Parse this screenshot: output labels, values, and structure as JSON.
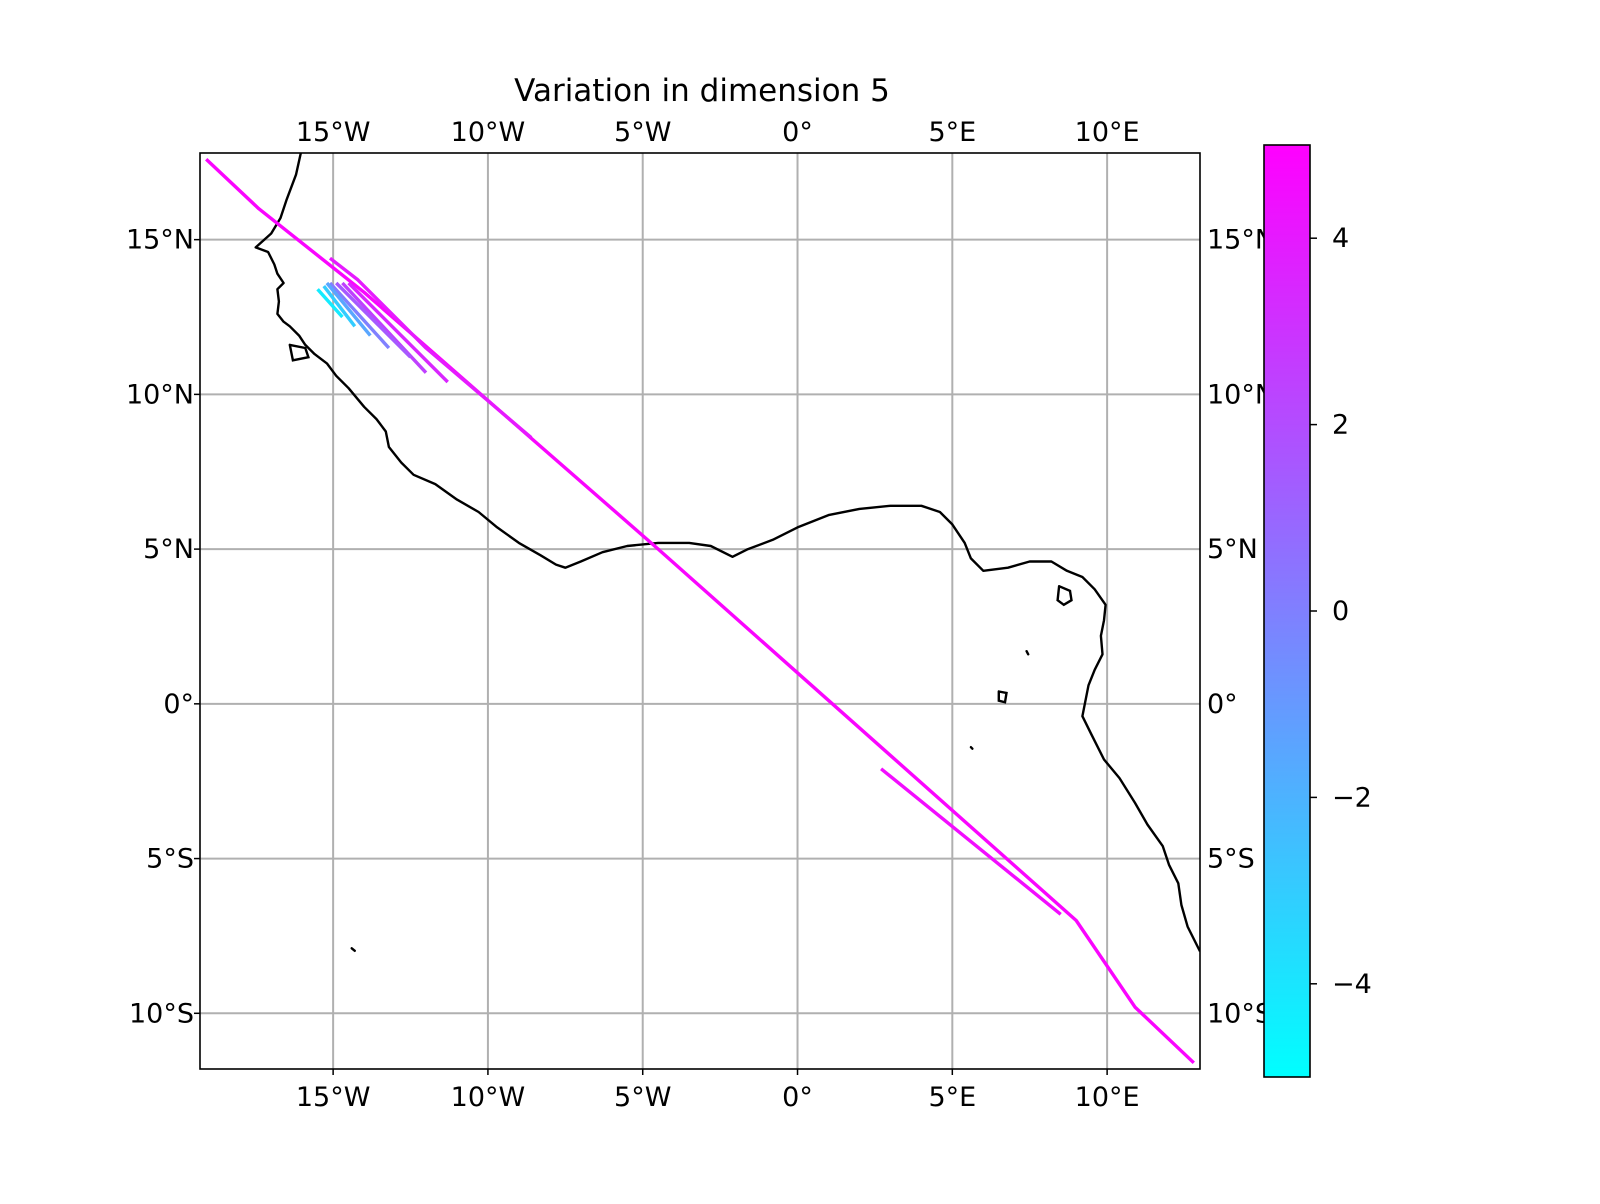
{
  "chart_data": {
    "type": "map",
    "title": "Variation in dimension 5",
    "projection": "PlateCarree",
    "extent": {
      "lon": [
        -19.3,
        13.0
      ],
      "lat": [
        -11.8,
        17.8
      ]
    },
    "grid": true,
    "x_ticks": [
      {
        "value": -15,
        "label": "15°W"
      },
      {
        "value": -10,
        "label": "10°W"
      },
      {
        "value": -5,
        "label": "5°W"
      },
      {
        "value": 0,
        "label": "0°"
      },
      {
        "value": 5,
        "label": "5°E"
      },
      {
        "value": 10,
        "label": "10°E"
      }
    ],
    "y_ticks": [
      {
        "value": 15,
        "label": "15°N"
      },
      {
        "value": 10,
        "label": "10°N"
      },
      {
        "value": 5,
        "label": "5°N"
      },
      {
        "value": 0,
        "label": "0°"
      },
      {
        "value": -5,
        "label": "5°S"
      },
      {
        "value": -10,
        "label": "10°S"
      }
    ],
    "colorbar": {
      "colormap": "cool",
      "range": [
        -5,
        5
      ],
      "colors": [
        "#00ffff",
        "#ff00ff"
      ],
      "ticks": [
        -4,
        -2,
        0,
        2,
        4
      ],
      "tick_labels": [
        "−4",
        "−2",
        "0",
        "2",
        "4"
      ]
    },
    "coastline": [
      [
        -16.0,
        18.0
      ],
      [
        -16.2,
        17.1
      ],
      [
        -16.5,
        16.3
      ],
      [
        -16.7,
        15.7
      ],
      [
        -17.0,
        15.2
      ],
      [
        -17.5,
        14.75
      ],
      [
        -17.1,
        14.6
      ],
      [
        -16.9,
        14.2
      ],
      [
        -16.8,
        13.9
      ],
      [
        -16.6,
        13.6
      ],
      [
        -16.8,
        13.4
      ],
      [
        -16.75,
        13.0
      ],
      [
        -16.8,
        12.6
      ],
      [
        -16.6,
        12.35
      ],
      [
        -16.4,
        12.2
      ],
      [
        -16.1,
        11.9
      ],
      [
        -15.9,
        11.6
      ],
      [
        -15.6,
        11.3
      ],
      [
        -15.2,
        11.0
      ],
      [
        -14.9,
        10.6
      ],
      [
        -14.5,
        10.2
      ],
      [
        -14.0,
        9.6
      ],
      [
        -13.6,
        9.2
      ],
      [
        -13.3,
        8.8
      ],
      [
        -13.2,
        8.3
      ],
      [
        -12.8,
        7.8
      ],
      [
        -12.4,
        7.4
      ],
      [
        -11.7,
        7.1
      ],
      [
        -11.0,
        6.6
      ],
      [
        -10.3,
        6.2
      ],
      [
        -9.7,
        5.7
      ],
      [
        -9.0,
        5.2
      ],
      [
        -8.3,
        4.8
      ],
      [
        -7.8,
        4.5
      ],
      [
        -7.5,
        4.4
      ],
      [
        -7.0,
        4.6
      ],
      [
        -6.3,
        4.9
      ],
      [
        -5.5,
        5.1
      ],
      [
        -4.5,
        5.2
      ],
      [
        -3.5,
        5.2
      ],
      [
        -2.8,
        5.1
      ],
      [
        -2.1,
        4.75
      ],
      [
        -1.6,
        5.0
      ],
      [
        -0.8,
        5.3
      ],
      [
        0.0,
        5.7
      ],
      [
        1.0,
        6.1
      ],
      [
        2.0,
        6.3
      ],
      [
        3.0,
        6.4
      ],
      [
        4.0,
        6.4
      ],
      [
        4.6,
        6.2
      ],
      [
        5.0,
        5.8
      ],
      [
        5.4,
        5.2
      ],
      [
        5.6,
        4.7
      ],
      [
        6.0,
        4.3
      ],
      [
        6.8,
        4.4
      ],
      [
        7.5,
        4.6
      ],
      [
        8.2,
        4.6
      ],
      [
        8.7,
        4.3
      ],
      [
        9.2,
        4.1
      ],
      [
        9.6,
        3.7
      ],
      [
        9.95,
        3.2
      ],
      [
        9.9,
        2.7
      ],
      [
        9.8,
        2.2
      ],
      [
        9.85,
        1.6
      ],
      [
        9.6,
        1.1
      ],
      [
        9.4,
        0.6
      ],
      [
        9.2,
        -0.4
      ],
      [
        9.5,
        -1.0
      ],
      [
        9.9,
        -1.8
      ],
      [
        10.4,
        -2.4
      ],
      [
        10.9,
        -3.2
      ],
      [
        11.3,
        -3.9
      ],
      [
        11.8,
        -4.6
      ],
      [
        12.0,
        -5.2
      ],
      [
        12.3,
        -5.8
      ],
      [
        12.4,
        -6.5
      ],
      [
        12.6,
        -7.2
      ],
      [
        13.0,
        -8.0
      ]
    ],
    "islands": [
      [
        [
          8.45,
          3.8
        ],
        [
          8.8,
          3.65
        ],
        [
          8.85,
          3.35
        ],
        [
          8.6,
          3.2
        ],
        [
          8.4,
          3.35
        ],
        [
          8.45,
          3.8
        ]
      ],
      [
        [
          6.5,
          0.4
        ],
        [
          6.75,
          0.35
        ],
        [
          6.7,
          0.05
        ],
        [
          6.5,
          0.1
        ],
        [
          6.5,
          0.4
        ]
      ],
      [
        [
          7.4,
          1.7
        ],
        [
          7.45,
          1.6
        ]
      ],
      [
        [
          5.6,
          -1.4
        ],
        [
          5.65,
          -1.45
        ]
      ],
      [
        [
          -14.4,
          -7.9
        ],
        [
          -14.3,
          -7.98
        ]
      ],
      [
        [
          -16.4,
          11.6
        ],
        [
          -15.9,
          11.5
        ],
        [
          -15.8,
          11.2
        ],
        [
          -16.3,
          11.1
        ],
        [
          -16.4,
          11.6
        ]
      ]
    ],
    "series": [
      {
        "value": 4.8,
        "points": [
          [
            -19.1,
            17.6
          ],
          [
            -17.4,
            16.0
          ],
          [
            -14.0,
            13.3
          ],
          [
            -4.5,
            5.0
          ],
          [
            9.0,
            -7.0
          ],
          [
            10.9,
            -9.8
          ],
          [
            12.8,
            -11.6
          ]
        ]
      },
      {
        "value": 4.5,
        "points": [
          [
            2.7,
            -2.1
          ],
          [
            8.5,
            -6.8
          ]
        ]
      },
      {
        "value": 4.0,
        "points": [
          [
            -15.1,
            14.4
          ],
          [
            -14.2,
            13.7
          ],
          [
            -12.0,
            11.5
          ],
          [
            -8.6,
            8.6
          ]
        ]
      },
      {
        "value": 3.5,
        "points": [
          [
            -14.5,
            13.6
          ],
          [
            -11.3,
            10.4
          ]
        ]
      },
      {
        "value": 2.5,
        "points": [
          [
            -14.7,
            13.6
          ],
          [
            -12.0,
            10.7
          ]
        ]
      },
      {
        "value": 1.5,
        "points": [
          [
            -14.9,
            13.6
          ],
          [
            -12.5,
            11.2
          ]
        ]
      },
      {
        "value": 0.0,
        "points": [
          [
            -15.1,
            13.6
          ],
          [
            -13.2,
            11.5
          ]
        ]
      },
      {
        "value": -1.5,
        "points": [
          [
            -15.2,
            13.6
          ],
          [
            -13.8,
            11.9
          ]
        ]
      },
      {
        "value": -3.0,
        "points": [
          [
            -15.3,
            13.5
          ],
          [
            -14.3,
            12.2
          ]
        ]
      },
      {
        "value": -4.2,
        "points": [
          [
            -15.5,
            13.4
          ],
          [
            -14.7,
            12.5
          ]
        ]
      }
    ]
  }
}
